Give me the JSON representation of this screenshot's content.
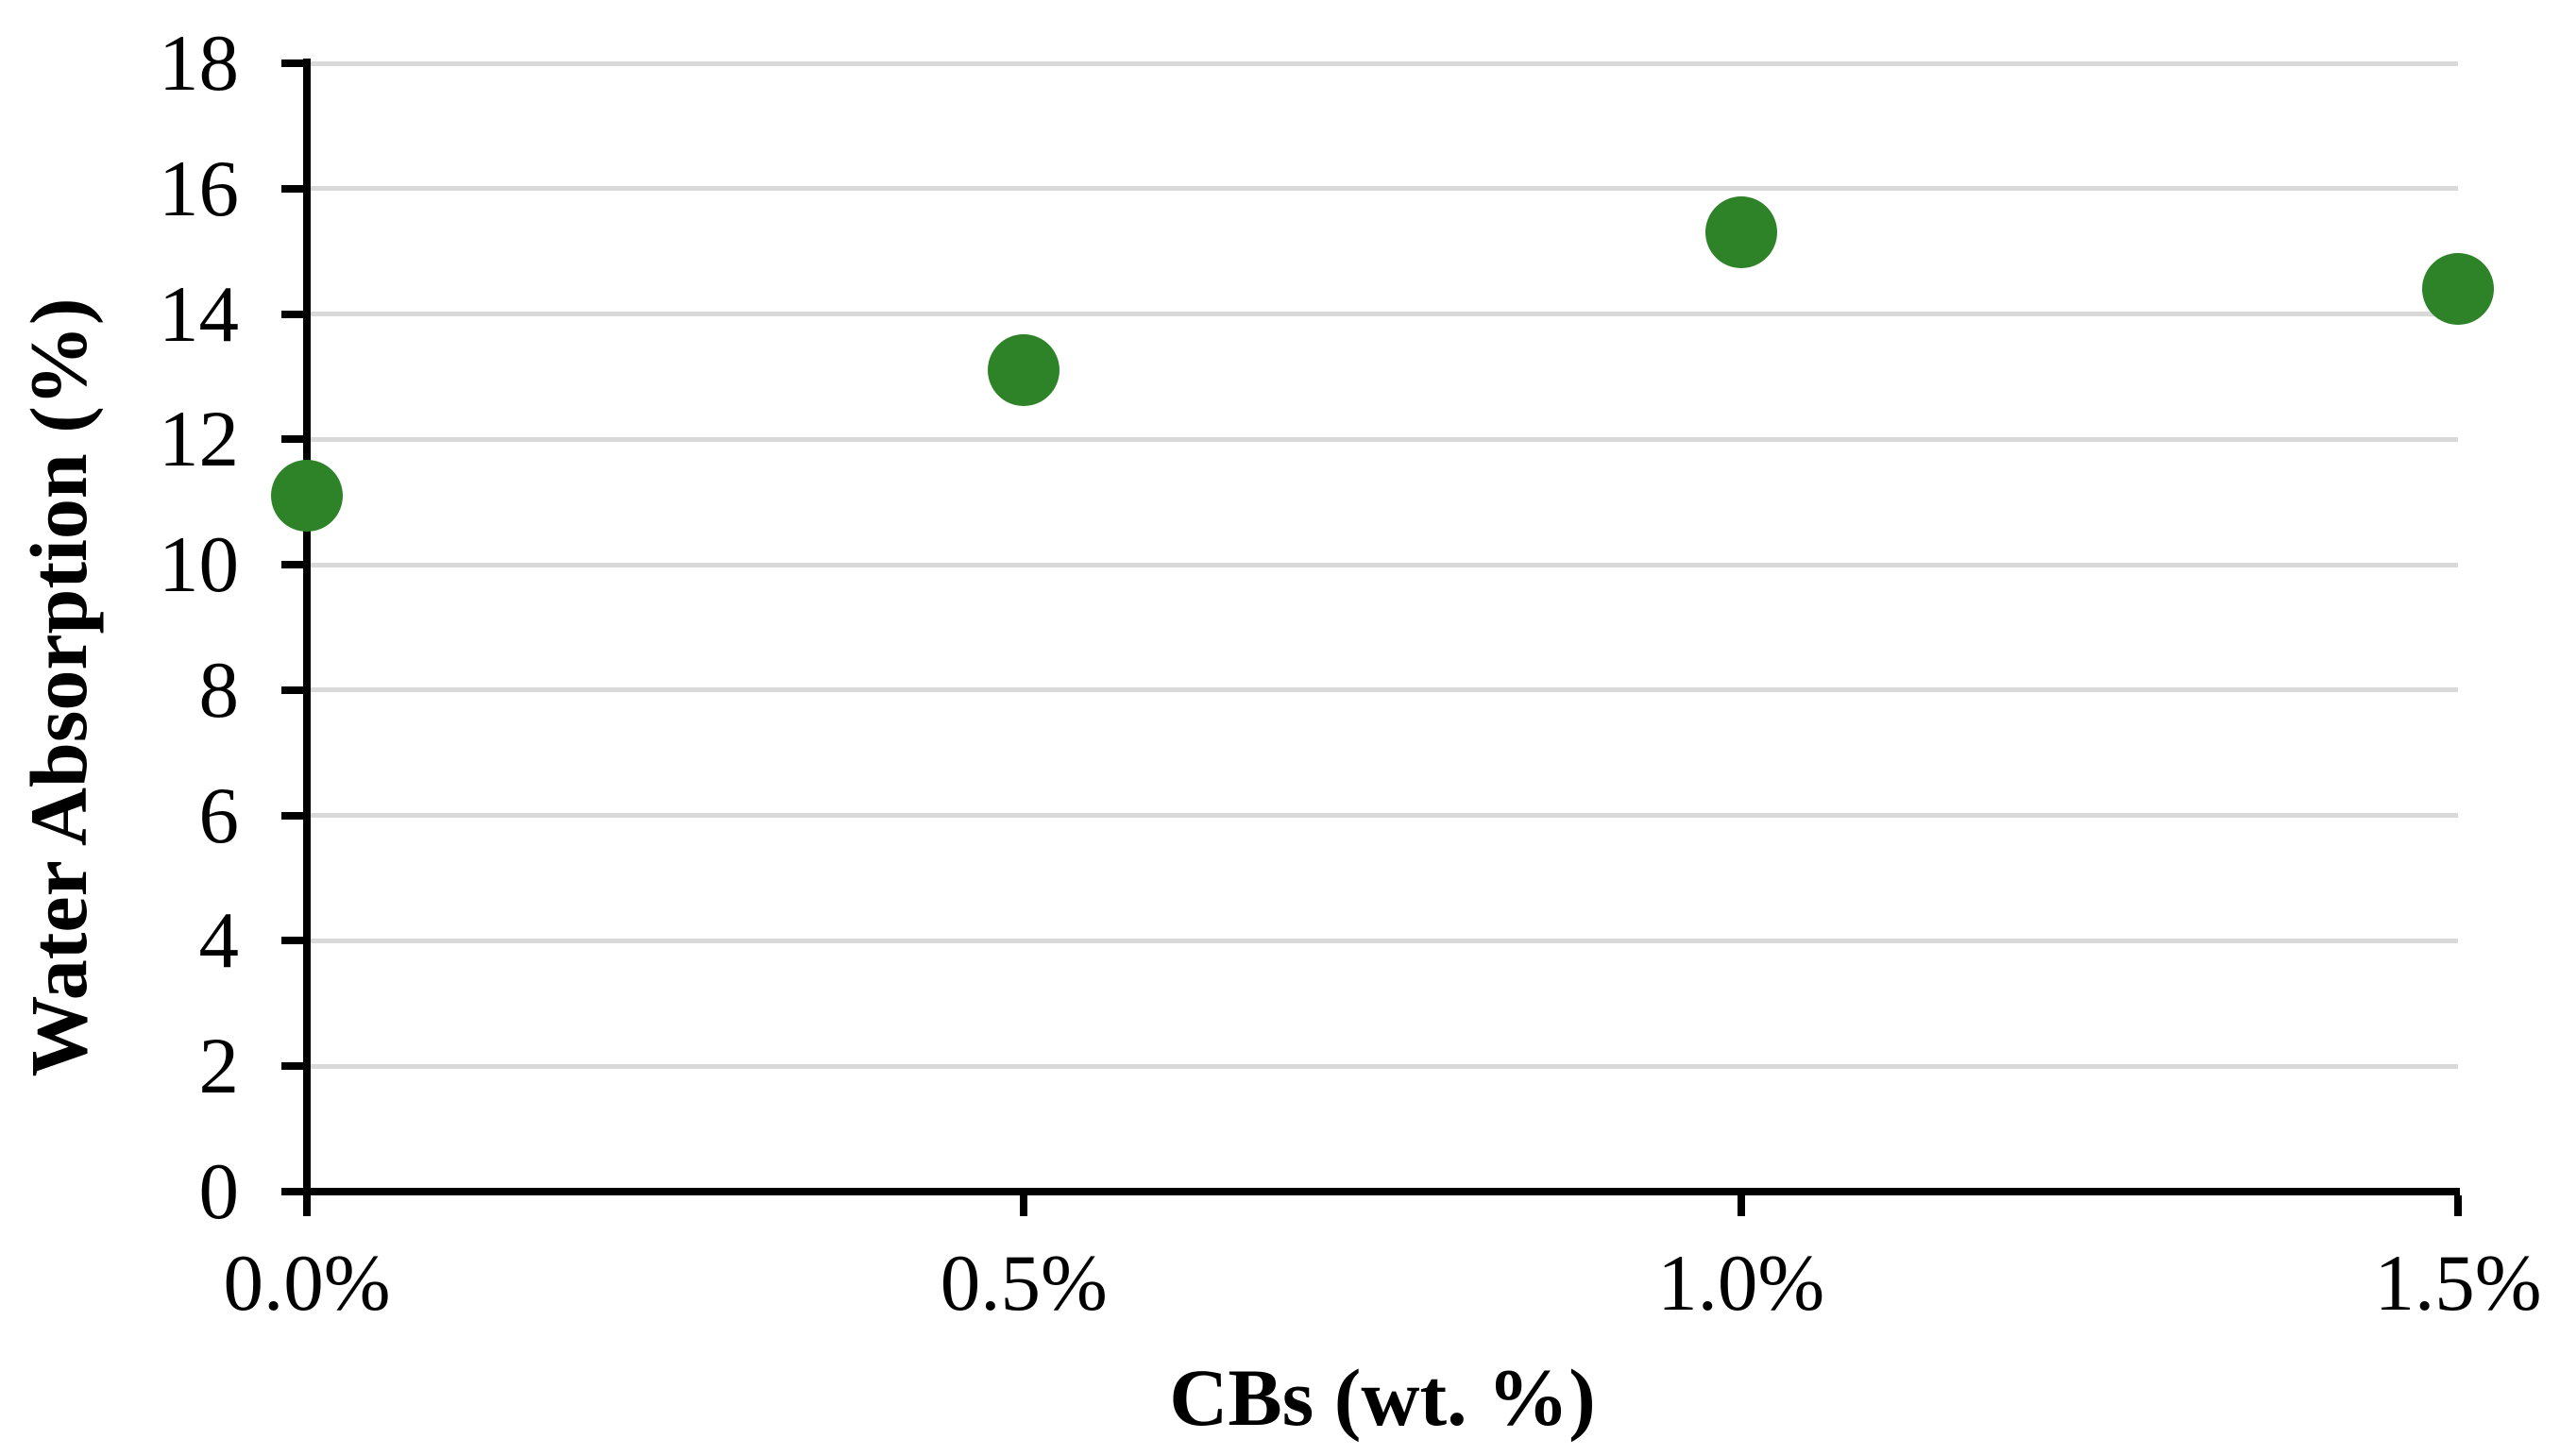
{
  "chart_data": {
    "type": "scatter",
    "title": "",
    "xlabel": "CBs (wt. %)",
    "ylabel": "Water Absorption (%)",
    "categories": [
      "0.0%",
      "0.5%",
      "1.0%",
      "1.5%"
    ],
    "series": [
      {
        "name": "Water Absorption",
        "values": [
          11.1,
          13.1,
          15.3,
          14.4
        ]
      }
    ],
    "ylim": [
      0,
      18
    ],
    "ytick_interval": 2,
    "ytick_labels": [
      "0",
      "2",
      "4",
      "6",
      "8",
      "10",
      "12",
      "14",
      "16",
      "18"
    ],
    "grid": "horizontal",
    "legend": "none",
    "colors": {
      "marker": "#2e8228",
      "gridline": "#d9d9d9",
      "axis": "#000000",
      "text": "#000000",
      "background": "#ffffff"
    }
  }
}
